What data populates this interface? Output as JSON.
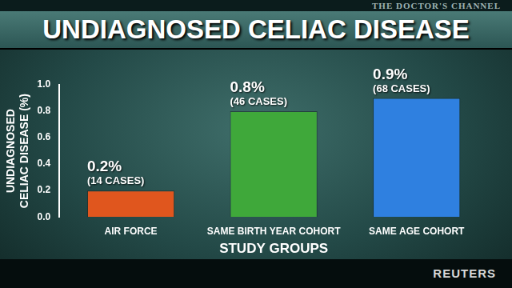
{
  "chart_data": {
    "type": "bar",
    "title": "UNDIAGNOSED CELIAC DISEASE",
    "header_text": "THE DOCTOR'S CHANNEL",
    "source": "REUTERS",
    "y_label": [
      "UNDIAGNOSED",
      "CELIAC DISEASE (%)"
    ],
    "x_label": "STUDY GROUPS",
    "categories": [
      "AIR FORCE",
      "SAME BIRTH YEAR COHORT",
      "SAME AGE COHORT"
    ],
    "values": [
      0.2,
      0.8,
      0.9
    ],
    "value_labels": [
      "0.2%",
      "0.8%",
      "0.9%"
    ],
    "case_labels": [
      "(14 CASES)",
      "(46 CASES)",
      "(68 CASES)"
    ],
    "colors": [
      "#e0561e",
      "#3fa83a",
      "#2f80e0"
    ],
    "ylim": [
      0,
      1
    ],
    "yticks": [
      {
        "value": 0,
        "label": "0.0"
      },
      0.2,
      0.4,
      0.6,
      0.8,
      {
        "value": 1,
        "label": "1.0"
      }
    ],
    "grid": false,
    "data_labels": true
  }
}
